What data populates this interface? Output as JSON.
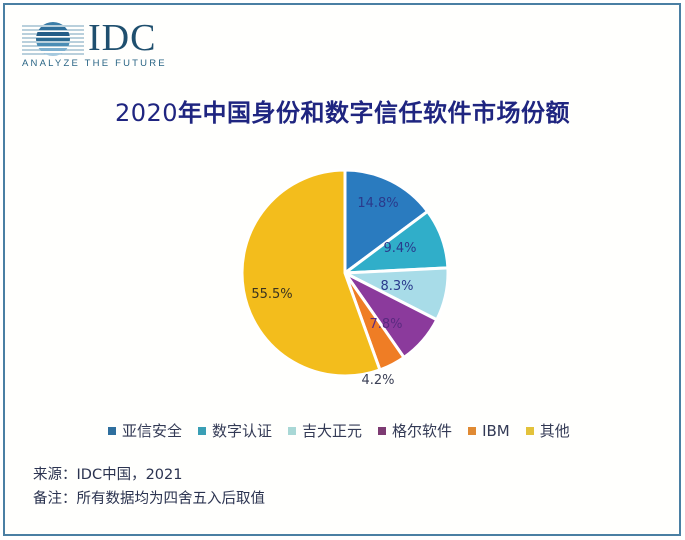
{
  "logo": {
    "brand": "IDC",
    "tagline": "ANALYZE THE FUTURE"
  },
  "title": {
    "year": "2020",
    "text": "年中国身份和数字信任软件市场份额"
  },
  "chart_data": {
    "type": "pie",
    "title": "2020年中国身份和数字信任软件市场份额",
    "start_angle": "12 o'clock, clockwise",
    "categories": [
      "亚信安全",
      "数字认证",
      "吉大正元",
      "格尔软件",
      "IBM",
      "其他"
    ],
    "values": [
      14.8,
      9.4,
      8.3,
      7.8,
      4.2,
      55.5
    ],
    "labels": [
      "14.8%",
      "9.4%",
      "8.3%",
      "7.8%",
      "4.2%",
      "55.5%"
    ],
    "colors": [
      "#2a7bbf",
      "#30aec9",
      "#a8dce8",
      "#8b3a9c",
      "#ef7d25",
      "#f3bd1c"
    ],
    "legend_position": "bottom"
  },
  "legend": {
    "items": [
      {
        "label": "亚信安全",
        "color": "#2f6f9e"
      },
      {
        "label": "数字认证",
        "color": "#3a9fb5"
      },
      {
        "label": "吉大正元",
        "color": "#a9d8d6"
      },
      {
        "label": "格尔软件",
        "color": "#7d3b72"
      },
      {
        "label": "IBM",
        "color": "#e08a33"
      },
      {
        "label": "其他",
        "color": "#e3c23a"
      }
    ]
  },
  "footer": {
    "source": "来源：IDC中国，2021",
    "note": "备注：所有数据均为四舍五入后取值"
  }
}
